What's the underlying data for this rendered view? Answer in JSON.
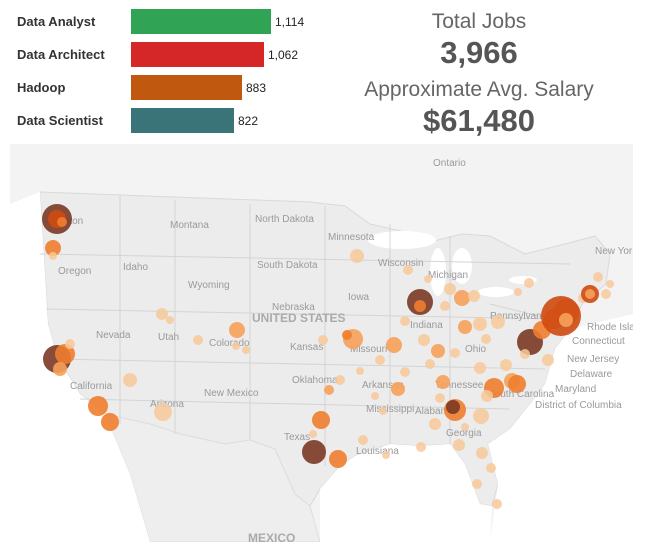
{
  "bar_chart": {
    "items": [
      {
        "label": "Data Analyst",
        "value": 1114,
        "value_text": "1,114",
        "color": "#31a354"
      },
      {
        "label": "Data Architect",
        "value": 1062,
        "value_text": "1,062",
        "color": "#d62728"
      },
      {
        "label": "Hadoop",
        "value": 883,
        "value_text": "883",
        "color": "#c0580f"
      },
      {
        "label": "Data Scientist",
        "value": 822,
        "value_text": "822",
        "color": "#3a7478"
      }
    ]
  },
  "summary": {
    "total_label": "Total Jobs",
    "total_value": "3,966",
    "salary_label": "Approximate Avg. Salary",
    "salary_value": "$61,480"
  },
  "map": {
    "labels": {
      "ontario": "Ontario",
      "washington": "ington",
      "montana": "Montana",
      "north_dakota": "North Dakota",
      "minnesota": "Minnesota",
      "south_dakota": "South Dakota",
      "wisconsin": "Wisconsin",
      "michigan": "Michigan",
      "new_york": "New Yor",
      "oregon": "Oregon",
      "idaho": "Idaho",
      "wyoming": "Wyoming",
      "nebraska": "Nebraska",
      "iowa": "Iowa",
      "indiana": "Indiana",
      "pennsylvania": "Pennsylvan",
      "connecticut": "Connecticut",
      "rhode_island": "Rhode Isla",
      "nevada": "Nevada",
      "utah": "Utah",
      "colorado": "Colorado",
      "united_states": "UNITED STATES",
      "kansas": "Kansas",
      "missouri": "Missouri",
      "ohio": "Ohio",
      "new_jersey": "New Jersey",
      "delaware": "Delaware",
      "maryland": "Maryland",
      "california": "California",
      "arizona": "Arizona",
      "new_mexico": "New Mexico",
      "oklahoma": "Oklahoma",
      "tennessee": "Tennessee",
      "arkansas": "Arkansas",
      "south_carolina": "South Carolina",
      "district_of_columbia": "District of Columbia",
      "mississippi": "Mississippi",
      "alabama": "Alabama",
      "georgia": "Georgia",
      "texas": "Texas",
      "louisiana": "Louisiana",
      "mexico": "MEXICO"
    },
    "colors": {
      "land": "#ececec",
      "water": "#ffffff",
      "dark": "#7b3a25",
      "deep": "#cf4a12",
      "mid": "#ef7d2f",
      "light": "#f6a15a",
      "pale": "#f8c99a"
    }
  }
}
